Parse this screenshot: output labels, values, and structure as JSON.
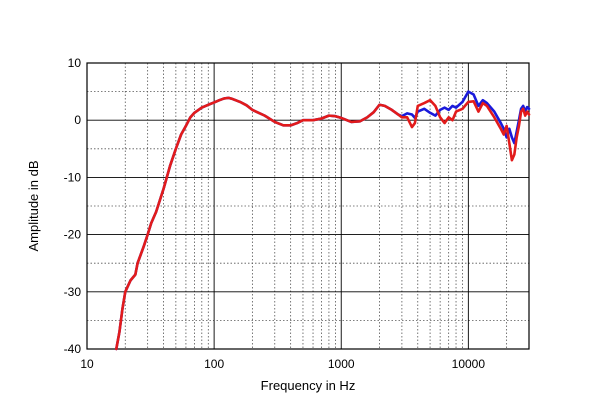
{
  "chart_data": {
    "type": "line",
    "xlabel": "Frequency in Hz",
    "ylabel": "Amplitude in dB",
    "x_scale": "log",
    "xlim": [
      10,
      30000
    ],
    "ylim": [
      -40,
      10
    ],
    "x_ticks": [
      10,
      100,
      1000,
      10000
    ],
    "x_tick_labels": [
      "10",
      "100",
      "1000",
      "10000"
    ],
    "y_ticks": [
      10,
      0,
      -10,
      -20,
      -30,
      -40
    ],
    "y_tick_labels": [
      "10",
      "0",
      "-10",
      "-20",
      "-30",
      "-40"
    ],
    "grid": true,
    "series": [
      {
        "color": "#1a1adb",
        "points": [
          [
            17,
            -40
          ],
          [
            18,
            -37
          ],
          [
            19,
            -33
          ],
          [
            20,
            -30
          ],
          [
            22,
            -28
          ],
          [
            24,
            -27
          ],
          [
            25,
            -25
          ],
          [
            28,
            -22
          ],
          [
            30,
            -20
          ],
          [
            32,
            -18
          ],
          [
            35,
            -16
          ],
          [
            40,
            -12
          ],
          [
            45,
            -8
          ],
          [
            50,
            -5
          ],
          [
            55,
            -2.5
          ],
          [
            60,
            -1
          ],
          [
            65,
            0.5
          ],
          [
            70,
            1.3
          ],
          [
            80,
            2.2
          ],
          [
            90,
            2.7
          ],
          [
            100,
            3.1
          ],
          [
            110,
            3.5
          ],
          [
            120,
            3.8
          ],
          [
            130,
            3.9
          ],
          [
            140,
            3.7
          ],
          [
            160,
            3.2
          ],
          [
            180,
            2.6
          ],
          [
            200,
            1.8
          ],
          [
            250,
            0.8
          ],
          [
            300,
            -0.3
          ],
          [
            350,
            -0.9
          ],
          [
            400,
            -0.9
          ],
          [
            450,
            -0.5
          ],
          [
            500,
            0
          ],
          [
            600,
            0
          ],
          [
            700,
            0.3
          ],
          [
            800,
            0.8
          ],
          [
            900,
            0.7
          ],
          [
            1000,
            0.4
          ],
          [
            1200,
            -0.3
          ],
          [
            1400,
            -0.2
          ],
          [
            1600,
            0.5
          ],
          [
            1800,
            1.4
          ],
          [
            2000,
            2.7
          ],
          [
            2200,
            2.5
          ],
          [
            2500,
            1.8
          ],
          [
            2800,
            1
          ],
          [
            3000,
            0.7
          ],
          [
            3300,
            1.2
          ],
          [
            3600,
            1
          ],
          [
            3800,
            0.4
          ],
          [
            4000,
            1.5
          ],
          [
            4500,
            2
          ],
          [
            5000,
            1.3
          ],
          [
            5500,
            0.8
          ],
          [
            6000,
            1.8
          ],
          [
            6500,
            2.2
          ],
          [
            7000,
            1.8
          ],
          [
            7500,
            2.5
          ],
          [
            8000,
            2.2
          ],
          [
            9000,
            3.2
          ],
          [
            10000,
            5
          ],
          [
            11000,
            4.5
          ],
          [
            12000,
            2.5
          ],
          [
            13000,
            3.5
          ],
          [
            14000,
            3
          ],
          [
            16000,
            1.5
          ],
          [
            18000,
            -0.5
          ],
          [
            19000,
            -1.5
          ],
          [
            20000,
            -3
          ],
          [
            21000,
            -1.5
          ],
          [
            22000,
            -3
          ],
          [
            23000,
            -4
          ],
          [
            24000,
            -2
          ],
          [
            25000,
            0
          ],
          [
            26000,
            2
          ],
          [
            27000,
            2.5
          ],
          [
            28000,
            1.5
          ],
          [
            29000,
            2.3
          ],
          [
            30000,
            2
          ]
        ]
      },
      {
        "color": "#e21b1b",
        "points": [
          [
            17,
            -40
          ],
          [
            18,
            -37
          ],
          [
            19,
            -33
          ],
          [
            20,
            -30
          ],
          [
            22,
            -28
          ],
          [
            24,
            -27
          ],
          [
            25,
            -25
          ],
          [
            28,
            -22
          ],
          [
            30,
            -20
          ],
          [
            32,
            -18
          ],
          [
            35,
            -16
          ],
          [
            40,
            -12
          ],
          [
            45,
            -8
          ],
          [
            50,
            -5
          ],
          [
            55,
            -2.5
          ],
          [
            60,
            -1
          ],
          [
            65,
            0.5
          ],
          [
            70,
            1.3
          ],
          [
            80,
            2.2
          ],
          [
            90,
            2.7
          ],
          [
            100,
            3.1
          ],
          [
            110,
            3.5
          ],
          [
            120,
            3.8
          ],
          [
            130,
            3.9
          ],
          [
            140,
            3.7
          ],
          [
            160,
            3.2
          ],
          [
            180,
            2.6
          ],
          [
            200,
            1.8
          ],
          [
            250,
            0.8
          ],
          [
            300,
            -0.3
          ],
          [
            350,
            -0.9
          ],
          [
            400,
            -0.9
          ],
          [
            450,
            -0.5
          ],
          [
            500,
            0
          ],
          [
            600,
            0
          ],
          [
            700,
            0.3
          ],
          [
            800,
            0.8
          ],
          [
            900,
            0.7
          ],
          [
            1000,
            0.4
          ],
          [
            1200,
            -0.3
          ],
          [
            1400,
            -0.2
          ],
          [
            1600,
            0.5
          ],
          [
            1800,
            1.4
          ],
          [
            2000,
            2.7
          ],
          [
            2200,
            2.5
          ],
          [
            2500,
            1.8
          ],
          [
            2800,
            1
          ],
          [
            3000,
            0.5
          ],
          [
            3300,
            0.5
          ],
          [
            3600,
            -1.2
          ],
          [
            3800,
            -0.5
          ],
          [
            4000,
            2.5
          ],
          [
            4500,
            3
          ],
          [
            5000,
            3.5
          ],
          [
            5500,
            2.5
          ],
          [
            6000,
            0.5
          ],
          [
            6500,
            -0.5
          ],
          [
            7000,
            0.5
          ],
          [
            7500,
            0
          ],
          [
            8000,
            1.5
          ],
          [
            9000,
            2
          ],
          [
            10000,
            3.2
          ],
          [
            11000,
            3.3
          ],
          [
            12000,
            1.5
          ],
          [
            13000,
            3
          ],
          [
            14000,
            2.5
          ],
          [
            16000,
            0.5
          ],
          [
            18000,
            -1.5
          ],
          [
            19000,
            -2.5
          ],
          [
            20000,
            -1
          ],
          [
            21000,
            -4
          ],
          [
            22000,
            -7
          ],
          [
            23000,
            -6
          ],
          [
            24000,
            -3
          ],
          [
            25000,
            -1
          ],
          [
            26000,
            1.5
          ],
          [
            27000,
            2
          ],
          [
            28000,
            0.8
          ],
          [
            29000,
            1.5
          ],
          [
            30000,
            1
          ]
        ]
      }
    ]
  }
}
